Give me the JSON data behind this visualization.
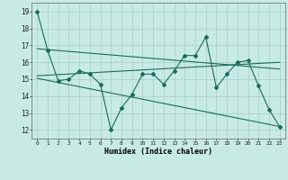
{
  "xlabel": "Humidex (Indice chaleur)",
  "ylabel": "",
  "bg_color": "#c8eae4",
  "grid_color": "#a8d4cc",
  "line_color": "#1a6b5a",
  "xlim": [
    -0.5,
    23.5
  ],
  "ylim": [
    11.5,
    19.5
  ],
  "yticks": [
    12,
    13,
    14,
    15,
    16,
    17,
    18,
    19
  ],
  "xticks": [
    0,
    1,
    2,
    3,
    4,
    5,
    6,
    7,
    8,
    9,
    10,
    11,
    12,
    13,
    14,
    15,
    16,
    17,
    18,
    19,
    20,
    21,
    22,
    23
  ],
  "xtick_labels": [
    "0",
    "1",
    "2",
    "3",
    "4",
    "5",
    "6",
    "7",
    "8",
    "9",
    "10",
    "11",
    "12",
    "13",
    "14",
    "15",
    "16",
    "17",
    "18",
    "19",
    "20",
    "21",
    "22",
    "23"
  ],
  "series1_x": [
    0,
    1,
    2,
    3,
    4,
    5,
    6,
    7,
    8,
    9,
    10,
    11,
    12,
    13,
    14,
    15,
    16,
    17,
    18,
    19,
    20,
    21,
    22,
    23
  ],
  "series1_y": [
    19.0,
    16.7,
    14.9,
    15.0,
    15.5,
    15.3,
    14.7,
    12.0,
    13.3,
    14.1,
    15.3,
    15.3,
    14.7,
    15.5,
    16.4,
    16.4,
    17.5,
    14.5,
    15.3,
    16.0,
    16.1,
    14.6,
    13.2,
    12.2
  ],
  "trend1_x": [
    0,
    23
  ],
  "trend1_y": [
    16.8,
    15.6
  ],
  "trend2_x": [
    0,
    23
  ],
  "trend2_y": [
    15.05,
    12.2
  ],
  "trend3_x": [
    0,
    23
  ],
  "trend3_y": [
    15.2,
    16.0
  ]
}
